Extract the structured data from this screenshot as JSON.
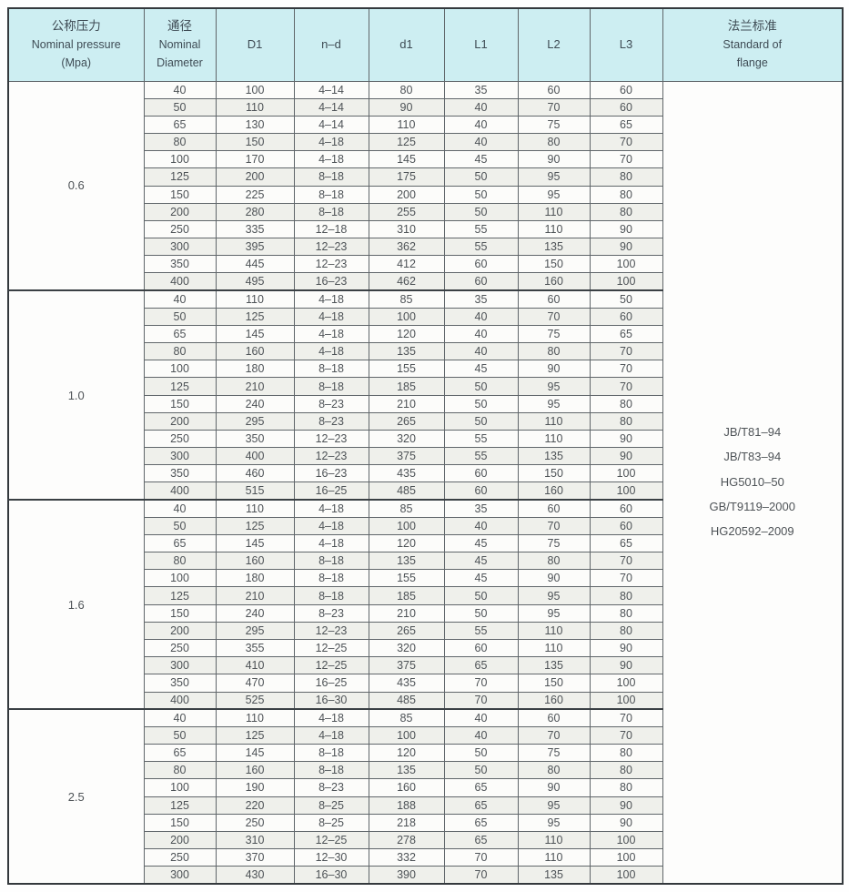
{
  "colors": {
    "header_bg": "#cdeef2",
    "header_text": "#3f4c55",
    "cell_text": "#4e5357",
    "grid_line": "#60666a",
    "outer_border": "#34393d",
    "row_bg": "#fcfcfa",
    "row_alt_bg": "#eff0eb"
  },
  "header": {
    "pressure_cn": "公称压力",
    "pressure_en": "Nominal pressure",
    "pressure_unit": "(Mpa)",
    "diameter_cn": "通径",
    "diameter_en1": "Nominal",
    "diameter_en2": "Diameter",
    "cols": [
      "D1",
      "n–d",
      "d1",
      "L1",
      "L2",
      "L3"
    ],
    "standard_cn": "法兰标准",
    "standard_en1": "Standard of",
    "standard_en2": "flange"
  },
  "standards": [
    "JB/T81–94",
    "JB/T83–94",
    "HG5010–50",
    "GB/T9119–2000",
    "HG20592–2009"
  ],
  "groups": [
    {
      "pressure": "0.6",
      "rows": [
        [
          "40",
          "100",
          "4–14",
          "80",
          "35",
          "60",
          "60"
        ],
        [
          "50",
          "110",
          "4–14",
          "90",
          "40",
          "70",
          "60"
        ],
        [
          "65",
          "130",
          "4–14",
          "110",
          "40",
          "75",
          "65"
        ],
        [
          "80",
          "150",
          "4–18",
          "125",
          "40",
          "80",
          "70"
        ],
        [
          "100",
          "170",
          "4–18",
          "145",
          "45",
          "90",
          "70"
        ],
        [
          "125",
          "200",
          "8–18",
          "175",
          "50",
          "95",
          "80"
        ],
        [
          "150",
          "225",
          "8–18",
          "200",
          "50",
          "95",
          "80"
        ],
        [
          "200",
          "280",
          "8–18",
          "255",
          "50",
          "110",
          "80"
        ],
        [
          "250",
          "335",
          "12–18",
          "310",
          "55",
          "110",
          "90"
        ],
        [
          "300",
          "395",
          "12–23",
          "362",
          "55",
          "135",
          "90"
        ],
        [
          "350",
          "445",
          "12–23",
          "412",
          "60",
          "150",
          "100"
        ],
        [
          "400",
          "495",
          "16–23",
          "462",
          "60",
          "160",
          "100"
        ]
      ]
    },
    {
      "pressure": "1.0",
      "rows": [
        [
          "40",
          "110",
          "4–18",
          "85",
          "35",
          "60",
          "50"
        ],
        [
          "50",
          "125",
          "4–18",
          "100",
          "40",
          "70",
          "60"
        ],
        [
          "65",
          "145",
          "4–18",
          "120",
          "40",
          "75",
          "65"
        ],
        [
          "80",
          "160",
          "4–18",
          "135",
          "40",
          "80",
          "70"
        ],
        [
          "100",
          "180",
          "8–18",
          "155",
          "45",
          "90",
          "70"
        ],
        [
          "125",
          "210",
          "8–18",
          "185",
          "50",
          "95",
          "70"
        ],
        [
          "150",
          "240",
          "8–23",
          "210",
          "50",
          "95",
          "80"
        ],
        [
          "200",
          "295",
          "8–23",
          "265",
          "50",
          "110",
          "80"
        ],
        [
          "250",
          "350",
          "12–23",
          "320",
          "55",
          "110",
          "90"
        ],
        [
          "300",
          "400",
          "12–23",
          "375",
          "55",
          "135",
          "90"
        ],
        [
          "350",
          "460",
          "16–23",
          "435",
          "60",
          "150",
          "100"
        ],
        [
          "400",
          "515",
          "16–25",
          "485",
          "60",
          "160",
          "100"
        ]
      ]
    },
    {
      "pressure": "1.6",
      "rows": [
        [
          "40",
          "110",
          "4–18",
          "85",
          "35",
          "60",
          "60"
        ],
        [
          "50",
          "125",
          "4–18",
          "100",
          "40",
          "70",
          "60"
        ],
        [
          "65",
          "145",
          "4–18",
          "120",
          "45",
          "75",
          "65"
        ],
        [
          "80",
          "160",
          "8–18",
          "135",
          "45",
          "80",
          "70"
        ],
        [
          "100",
          "180",
          "8–18",
          "155",
          "45",
          "90",
          "70"
        ],
        [
          "125",
          "210",
          "8–18",
          "185",
          "50",
          "95",
          "80"
        ],
        [
          "150",
          "240",
          "8–23",
          "210",
          "50",
          "95",
          "80"
        ],
        [
          "200",
          "295",
          "12–23",
          "265",
          "55",
          "110",
          "80"
        ],
        [
          "250",
          "355",
          "12–25",
          "320",
          "60",
          "110",
          "90"
        ],
        [
          "300",
          "410",
          "12–25",
          "375",
          "65",
          "135",
          "90"
        ],
        [
          "350",
          "470",
          "16–25",
          "435",
          "70",
          "150",
          "100"
        ],
        [
          "400",
          "525",
          "16–30",
          "485",
          "70",
          "160",
          "100"
        ]
      ]
    },
    {
      "pressure": "2.5",
      "rows": [
        [
          "40",
          "110",
          "4–18",
          "85",
          "40",
          "60",
          "70"
        ],
        [
          "50",
          "125",
          "4–18",
          "100",
          "40",
          "70",
          "70"
        ],
        [
          "65",
          "145",
          "8–18",
          "120",
          "50",
          "75",
          "80"
        ],
        [
          "80",
          "160",
          "8–18",
          "135",
          "50",
          "80",
          "80"
        ],
        [
          "100",
          "190",
          "8–23",
          "160",
          "65",
          "90",
          "80"
        ],
        [
          "125",
          "220",
          "8–25",
          "188",
          "65",
          "95",
          "90"
        ],
        [
          "150",
          "250",
          "8–25",
          "218",
          "65",
          "95",
          "90"
        ],
        [
          "200",
          "310",
          "12–25",
          "278",
          "65",
          "110",
          "100"
        ],
        [
          "250",
          "370",
          "12–30",
          "332",
          "70",
          "110",
          "100"
        ],
        [
          "300",
          "430",
          "16–30",
          "390",
          "70",
          "135",
          "100"
        ]
      ]
    }
  ]
}
